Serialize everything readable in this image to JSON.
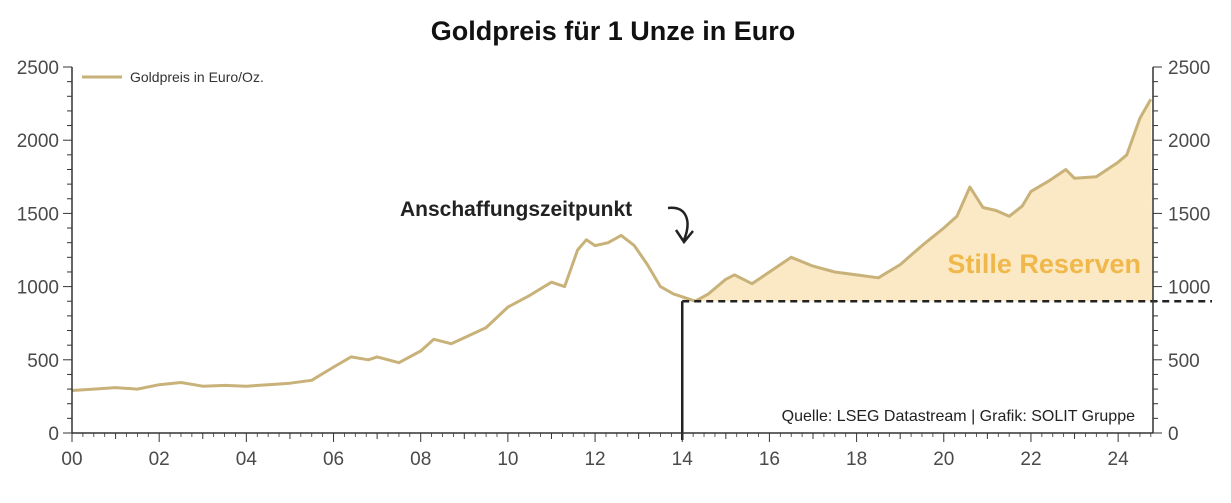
{
  "chart_data": {
    "type": "line",
    "title": "Goldpreis für 1 Unze in Euro",
    "xlabel": "",
    "ylabel": "",
    "x_tick_labels": [
      "00",
      "02",
      "04",
      "06",
      "08",
      "10",
      "12",
      "14",
      "16",
      "18",
      "20",
      "22",
      "24"
    ],
    "y_ticks": [
      0,
      500,
      1000,
      1500,
      2000,
      2500
    ],
    "ylim": [
      0,
      2500
    ],
    "xlim": [
      2000.0,
      2024.8
    ],
    "grid": false,
    "legend": {
      "placement": "top-left",
      "entries": [
        "Goldpreis in Euro/Oz."
      ]
    },
    "series": [
      {
        "name": "Goldpreis in Euro/Oz.",
        "color": "#c9b27a",
        "x": [
          2000.0,
          2000.5,
          2001.0,
          2001.5,
          2002.0,
          2002.5,
          2003.0,
          2003.5,
          2004.0,
          2004.5,
          2005.0,
          2005.5,
          2006.0,
          2006.4,
          2006.8,
          2007.0,
          2007.5,
          2008.0,
          2008.3,
          2008.7,
          2009.0,
          2009.5,
          2010.0,
          2010.5,
          2011.0,
          2011.3,
          2011.6,
          2011.8,
          2012.0,
          2012.3,
          2012.6,
          2012.9,
          2013.2,
          2013.5,
          2013.8,
          2014.0,
          2014.3,
          2014.6,
          2015.0,
          2015.2,
          2015.6,
          2016.0,
          2016.5,
          2017.0,
          2017.5,
          2018.0,
          2018.5,
          2019.0,
          2019.5,
          2020.0,
          2020.3,
          2020.6,
          2020.9,
          2021.2,
          2021.5,
          2021.8,
          2022.0,
          2022.4,
          2022.8,
          2023.0,
          2023.5,
          2024.0,
          2024.2,
          2024.5,
          2024.75
        ],
        "values": [
          290,
          300,
          310,
          300,
          330,
          345,
          320,
          325,
          320,
          330,
          340,
          360,
          450,
          520,
          500,
          520,
          480,
          560,
          640,
          610,
          650,
          720,
          860,
          940,
          1030,
          1000,
          1250,
          1320,
          1280,
          1300,
          1350,
          1280,
          1150,
          1000,
          950,
          930,
          900,
          950,
          1050,
          1080,
          1020,
          1100,
          1200,
          1140,
          1100,
          1080,
          1060,
          1150,
          1280,
          1400,
          1480,
          1680,
          1540,
          1520,
          1480,
          1550,
          1650,
          1720,
          1800,
          1740,
          1750,
          1850,
          1900,
          2150,
          2280
        ]
      }
    ],
    "annotations": [
      {
        "text": "Anschaffungszeitpunkt",
        "x": 2014.0,
        "y": 900
      },
      {
        "text": "Stille Reserven",
        "shaded_region_above": 900,
        "x_from": 2014.0,
        "color": "#fbe8c4"
      }
    ],
    "reference_line": {
      "y": 900,
      "x_from": 2014.0,
      "style": "dashed"
    },
    "source_note": "Quelle: LSEG Datastream | Grafik: SOLIT Gruppe"
  },
  "colors": {
    "line": "#c9b27a",
    "fill": "#fbe8c4",
    "reserve_text": "#f0b84a",
    "axis": "#333333"
  }
}
